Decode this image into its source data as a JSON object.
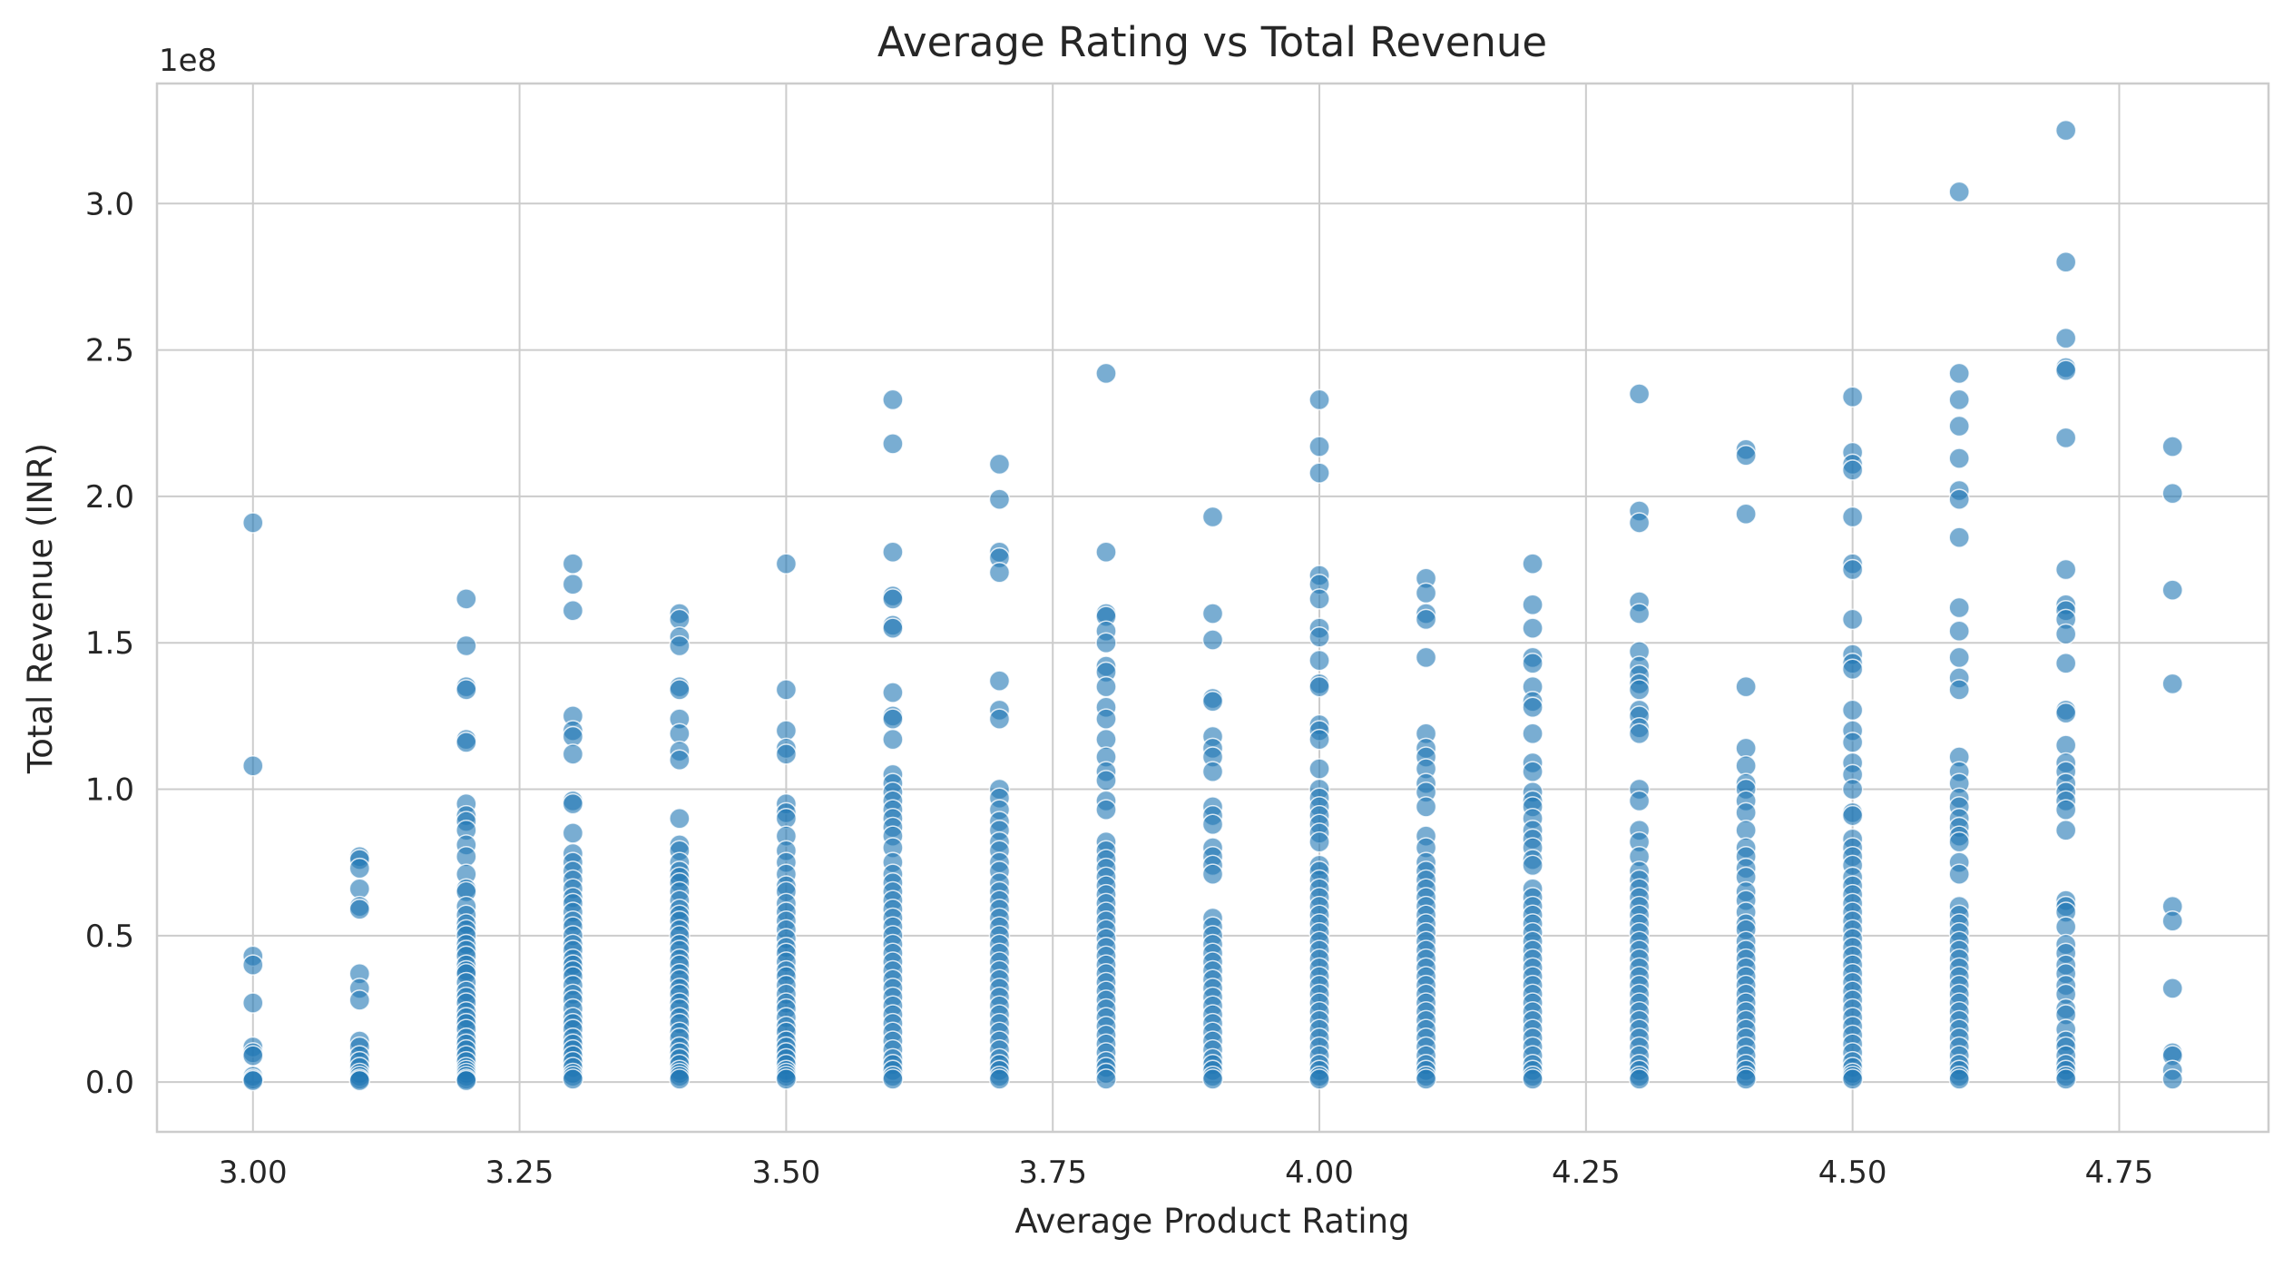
{
  "chart_data": {
    "type": "scatter",
    "title": "Average Rating vs Total Revenue",
    "xlabel": "Average Product Rating",
    "ylabel": "Total Revenue (INR)",
    "y_offset_label": "1e8",
    "xlim": [
      2.91,
      4.89
    ],
    "ylim": [
      -0.17,
      3.41
    ],
    "y_unit_multiplier": 100000000,
    "grid": true,
    "legend": "none",
    "color": "#1f77b4",
    "x_ticks": [
      "3.00",
      "3.25",
      "3.50",
      "3.75",
      "4.00",
      "4.25",
      "4.50",
      "4.75"
    ],
    "y_ticks": [
      "0.0",
      "0.5",
      "1.0",
      "1.5",
      "2.0",
      "2.5",
      "3.0"
    ],
    "series": [
      {
        "x": 3.0,
        "y": [
          1.91,
          1.08,
          0.43,
          0.4,
          0.27,
          0.12,
          0.1,
          0.09,
          0.02,
          0.01,
          0.005
        ]
      },
      {
        "x": 3.1,
        "y": [
          0.77,
          0.76,
          0.73,
          0.66,
          0.6,
          0.59,
          0.37,
          0.32,
          0.28,
          0.14,
          0.12,
          0.09,
          0.07,
          0.05,
          0.03,
          0.02,
          0.01,
          0.005
        ]
      },
      {
        "x": 3.2,
        "y": [
          1.65,
          1.49,
          1.35,
          1.34,
          1.17,
          1.16,
          0.95,
          0.91,
          0.89,
          0.86,
          0.81,
          0.77,
          0.71,
          0.66,
          0.65,
          0.6,
          0.57,
          0.54,
          0.52,
          0.5,
          0.47,
          0.45,
          0.43,
          0.4,
          0.38,
          0.37,
          0.34,
          0.31,
          0.29,
          0.27,
          0.24,
          0.22,
          0.2,
          0.18,
          0.15,
          0.13,
          0.11,
          0.09,
          0.07,
          0.05,
          0.04,
          0.03,
          0.02,
          0.01,
          0.005
        ]
      },
      {
        "x": 3.3,
        "y": [
          1.77,
          1.7,
          1.61,
          1.25,
          1.2,
          1.18,
          1.12,
          0.96,
          0.95,
          0.85,
          0.78,
          0.75,
          0.72,
          0.69,
          0.66,
          0.63,
          0.61,
          0.58,
          0.55,
          0.53,
          0.5,
          0.47,
          0.45,
          0.42,
          0.4,
          0.38,
          0.36,
          0.33,
          0.3,
          0.28,
          0.25,
          0.22,
          0.2,
          0.18,
          0.15,
          0.13,
          0.11,
          0.09,
          0.07,
          0.05,
          0.03,
          0.02,
          0.01
        ]
      },
      {
        "x": 3.4,
        "y": [
          1.6,
          1.58,
          1.52,
          1.49,
          1.35,
          1.34,
          1.24,
          1.19,
          1.13,
          1.1,
          0.9,
          0.81,
          0.79,
          0.75,
          0.72,
          0.7,
          0.68,
          0.65,
          0.62,
          0.59,
          0.57,
          0.55,
          0.52,
          0.5,
          0.47,
          0.45,
          0.42,
          0.4,
          0.37,
          0.35,
          0.32,
          0.3,
          0.27,
          0.25,
          0.22,
          0.2,
          0.17,
          0.15,
          0.12,
          0.1,
          0.08,
          0.06,
          0.04,
          0.03,
          0.02,
          0.01
        ]
      },
      {
        "x": 3.5,
        "y": [
          1.77,
          1.34,
          1.2,
          1.14,
          1.12,
          0.95,
          0.92,
          0.9,
          0.84,
          0.79,
          0.75,
          0.71,
          0.67,
          0.65,
          0.61,
          0.58,
          0.55,
          0.52,
          0.49,
          0.46,
          0.44,
          0.41,
          0.38,
          0.36,
          0.33,
          0.3,
          0.27,
          0.25,
          0.22,
          0.19,
          0.17,
          0.14,
          0.12,
          0.1,
          0.08,
          0.06,
          0.04,
          0.03,
          0.02,
          0.01
        ]
      },
      {
        "x": 3.6,
        "y": [
          2.33,
          2.18,
          1.81,
          1.66,
          1.65,
          1.56,
          1.55,
          1.33,
          1.25,
          1.24,
          1.17,
          1.05,
          1.02,
          0.99,
          0.96,
          0.93,
          0.9,
          0.87,
          0.84,
          0.8,
          0.75,
          0.71,
          0.68,
          0.65,
          0.62,
          0.59,
          0.56,
          0.53,
          0.5,
          0.47,
          0.44,
          0.41,
          0.38,
          0.35,
          0.32,
          0.29,
          0.26,
          0.23,
          0.2,
          0.17,
          0.14,
          0.11,
          0.08,
          0.06,
          0.04,
          0.02,
          0.01
        ]
      },
      {
        "x": 3.7,
        "y": [
          2.11,
          1.99,
          1.81,
          1.79,
          1.74,
          1.37,
          1.27,
          1.24,
          1.0,
          0.97,
          0.93,
          0.89,
          0.86,
          0.82,
          0.79,
          0.75,
          0.72,
          0.68,
          0.65,
          0.62,
          0.59,
          0.56,
          0.53,
          0.5,
          0.47,
          0.44,
          0.41,
          0.38,
          0.35,
          0.32,
          0.29,
          0.26,
          0.23,
          0.2,
          0.17,
          0.14,
          0.11,
          0.08,
          0.06,
          0.04,
          0.02,
          0.01
        ]
      },
      {
        "x": 3.8,
        "y": [
          2.42,
          1.81,
          1.6,
          1.59,
          1.54,
          1.5,
          1.42,
          1.4,
          1.35,
          1.28,
          1.24,
          1.17,
          1.11,
          1.06,
          1.03,
          0.96,
          0.93,
          0.82,
          0.79,
          0.76,
          0.73,
          0.7,
          0.67,
          0.64,
          0.61,
          0.58,
          0.55,
          0.52,
          0.49,
          0.46,
          0.43,
          0.4,
          0.37,
          0.34,
          0.31,
          0.28,
          0.25,
          0.22,
          0.19,
          0.16,
          0.13,
          0.1,
          0.07,
          0.05,
          0.03,
          0.01
        ]
      },
      {
        "x": 3.9,
        "y": [
          1.93,
          1.6,
          1.51,
          1.31,
          1.3,
          1.18,
          1.14,
          1.11,
          1.06,
          0.94,
          0.91,
          0.88,
          0.8,
          0.77,
          0.74,
          0.71,
          0.56,
          0.53,
          0.5,
          0.47,
          0.44,
          0.41,
          0.38,
          0.35,
          0.32,
          0.29,
          0.26,
          0.23,
          0.2,
          0.17,
          0.14,
          0.11,
          0.08,
          0.06,
          0.04,
          0.02,
          0.01
        ]
      },
      {
        "x": 4.0,
        "y": [
          2.33,
          2.17,
          2.08,
          1.73,
          1.7,
          1.65,
          1.55,
          1.52,
          1.44,
          1.36,
          1.35,
          1.22,
          1.2,
          1.17,
          1.07,
          1.0,
          0.97,
          0.94,
          0.91,
          0.88,
          0.85,
          0.82,
          0.74,
          0.72,
          0.69,
          0.66,
          0.63,
          0.6,
          0.57,
          0.54,
          0.51,
          0.48,
          0.45,
          0.42,
          0.39,
          0.36,
          0.33,
          0.3,
          0.27,
          0.24,
          0.21,
          0.18,
          0.15,
          0.12,
          0.09,
          0.06,
          0.04,
          0.02,
          0.01
        ]
      },
      {
        "x": 4.1,
        "y": [
          1.72,
          1.67,
          1.6,
          1.58,
          1.45,
          1.19,
          1.14,
          1.11,
          1.07,
          1.02,
          0.99,
          0.94,
          0.84,
          0.8,
          0.75,
          0.72,
          0.69,
          0.66,
          0.63,
          0.6,
          0.57,
          0.54,
          0.51,
          0.48,
          0.45,
          0.42,
          0.39,
          0.36,
          0.33,
          0.3,
          0.27,
          0.24,
          0.21,
          0.18,
          0.15,
          0.12,
          0.09,
          0.06,
          0.04,
          0.02,
          0.01
        ]
      },
      {
        "x": 4.2,
        "y": [
          1.77,
          1.63,
          1.55,
          1.45,
          1.43,
          1.35,
          1.3,
          1.28,
          1.19,
          1.09,
          1.06,
          0.99,
          0.96,
          0.94,
          0.9,
          0.86,
          0.83,
          0.8,
          0.76,
          0.74,
          0.66,
          0.63,
          0.6,
          0.57,
          0.54,
          0.51,
          0.48,
          0.45,
          0.42,
          0.39,
          0.36,
          0.33,
          0.3,
          0.27,
          0.24,
          0.21,
          0.18,
          0.15,
          0.12,
          0.09,
          0.06,
          0.04,
          0.02,
          0.01
        ]
      },
      {
        "x": 4.3,
        "y": [
          2.35,
          1.95,
          1.91,
          1.64,
          1.6,
          1.47,
          1.42,
          1.39,
          1.36,
          1.34,
          1.27,
          1.25,
          1.21,
          1.19,
          1.0,
          0.96,
          0.86,
          0.82,
          0.77,
          0.72,
          0.69,
          0.66,
          0.63,
          0.6,
          0.57,
          0.54,
          0.51,
          0.48,
          0.45,
          0.42,
          0.39,
          0.36,
          0.33,
          0.3,
          0.27,
          0.24,
          0.21,
          0.18,
          0.15,
          0.12,
          0.09,
          0.06,
          0.04,
          0.02,
          0.01
        ]
      },
      {
        "x": 4.4,
        "y": [
          2.16,
          2.14,
          1.94,
          1.35,
          1.14,
          1.08,
          1.02,
          1.0,
          0.96,
          0.92,
          0.86,
          0.8,
          0.77,
          0.73,
          0.7,
          0.65,
          0.62,
          0.58,
          0.54,
          0.52,
          0.48,
          0.45,
          0.42,
          0.39,
          0.36,
          0.33,
          0.3,
          0.27,
          0.24,
          0.21,
          0.18,
          0.15,
          0.12,
          0.09,
          0.06,
          0.04,
          0.02,
          0.01
        ]
      },
      {
        "x": 4.5,
        "y": [
          2.34,
          2.15,
          2.11,
          2.09,
          1.93,
          1.77,
          1.75,
          1.58,
          1.46,
          1.43,
          1.41,
          1.27,
          1.2,
          1.16,
          1.09,
          1.05,
          1.0,
          0.92,
          0.91,
          0.83,
          0.8,
          0.77,
          0.74,
          0.7,
          0.67,
          0.64,
          0.61,
          0.58,
          0.55,
          0.52,
          0.49,
          0.46,
          0.43,
          0.4,
          0.37,
          0.34,
          0.31,
          0.28,
          0.25,
          0.22,
          0.19,
          0.16,
          0.13,
          0.1,
          0.07,
          0.05,
          0.03,
          0.02,
          0.01
        ]
      },
      {
        "x": 4.6,
        "y": [
          3.04,
          2.42,
          2.33,
          2.24,
          2.13,
          2.02,
          1.99,
          1.86,
          1.62,
          1.54,
          1.45,
          1.38,
          1.34,
          1.11,
          1.06,
          1.02,
          0.97,
          0.94,
          0.9,
          0.87,
          0.84,
          0.82,
          0.75,
          0.71,
          0.6,
          0.57,
          0.54,
          0.51,
          0.48,
          0.45,
          0.42,
          0.39,
          0.36,
          0.33,
          0.3,
          0.27,
          0.24,
          0.21,
          0.18,
          0.15,
          0.12,
          0.09,
          0.06,
          0.04,
          0.02,
          0.01
        ]
      },
      {
        "x": 4.7,
        "y": [
          3.25,
          2.8,
          2.54,
          2.44,
          2.43,
          2.2,
          1.75,
          1.63,
          1.61,
          1.58,
          1.53,
          1.43,
          1.27,
          1.26,
          1.15,
          1.09,
          1.06,
          1.02,
          0.99,
          0.96,
          0.93,
          0.86,
          0.62,
          0.6,
          0.58,
          0.53,
          0.47,
          0.44,
          0.4,
          0.37,
          0.33,
          0.3,
          0.25,
          0.23,
          0.18,
          0.14,
          0.12,
          0.09,
          0.06,
          0.04,
          0.02,
          0.01
        ]
      },
      {
        "x": 4.8,
        "y": [
          2.17,
          2.01,
          1.68,
          1.36,
          0.6,
          0.55,
          0.32,
          0.1,
          0.09,
          0.04,
          0.01
        ]
      }
    ]
  }
}
